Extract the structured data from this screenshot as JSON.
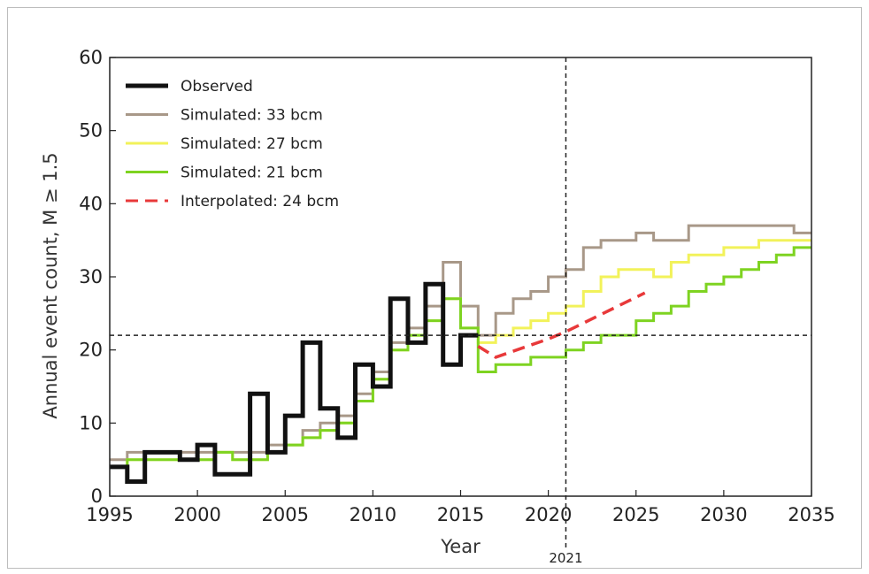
{
  "chart_data": {
    "type": "line",
    "title": "",
    "xlabel": "Year",
    "ylabel": "Annual event count, M ≥ 1.5",
    "xlim": [
      1995,
      2035
    ],
    "ylim": [
      0,
      60
    ],
    "xticks": [
      1995,
      2000,
      2005,
      2010,
      2015,
      2020,
      2025,
      2030,
      2035
    ],
    "yticks": [
      0,
      10,
      20,
      30,
      40,
      50,
      60
    ],
    "grid": false,
    "legend_position": "top-left",
    "reference_lines": {
      "horizontal_y": 22,
      "vertical_x": 2021,
      "vertical_label": "2021"
    },
    "series": [
      {
        "name": "Simulated: 33 bcm",
        "color": "#a89888",
        "style": "step",
        "x": [
          1995,
          1996,
          1997,
          1998,
          1999,
          2000,
          2001,
          2002,
          2003,
          2004,
          2005,
          2006,
          2007,
          2008,
          2009,
          2010,
          2011,
          2012,
          2013,
          2014,
          2015,
          2016,
          2017,
          2018,
          2019,
          2020,
          2021,
          2022,
          2023,
          2024,
          2025,
          2026,
          2027,
          2028,
          2029,
          2030,
          2031,
          2032,
          2033,
          2034,
          2035
        ],
        "y": [
          5,
          6,
          6,
          6,
          6,
          6,
          6,
          6,
          6,
          7,
          7,
          9,
          10,
          11,
          14,
          17,
          21,
          23,
          26,
          32,
          26,
          22,
          25,
          27,
          28,
          30,
          31,
          34,
          35,
          35,
          36,
          35,
          35,
          37,
          37,
          37,
          37,
          37,
          37,
          36,
          37
        ]
      },
      {
        "name": "Simulated: 27 bcm",
        "color": "#f2f25a",
        "style": "step",
        "x": [
          1995,
          1996,
          1997,
          1998,
          1999,
          2000,
          2001,
          2002,
          2003,
          2004,
          2005,
          2006,
          2007,
          2008,
          2009,
          2010,
          2011,
          2012,
          2013,
          2014,
          2015,
          2016,
          2017,
          2018,
          2019,
          2020,
          2021,
          2022,
          2023,
          2024,
          2025,
          2026,
          2027,
          2028,
          2029,
          2030,
          2031,
          2032,
          2033,
          2034,
          2035
        ],
        "y": [
          4,
          5,
          5,
          5,
          5,
          5,
          6,
          5,
          5,
          6,
          7,
          8,
          9,
          10,
          13,
          16,
          20,
          22,
          24,
          27,
          23,
          21,
          22,
          23,
          24,
          25,
          26,
          28,
          30,
          31,
          31,
          30,
          32,
          33,
          33,
          34,
          34,
          35,
          35,
          35,
          35
        ]
      },
      {
        "name": "Simulated: 21 bcm",
        "color": "#7ed321",
        "style": "step",
        "x": [
          1995,
          1996,
          1997,
          1998,
          1999,
          2000,
          2001,
          2002,
          2003,
          2004,
          2005,
          2006,
          2007,
          2008,
          2009,
          2010,
          2011,
          2012,
          2013,
          2014,
          2015,
          2016,
          2017,
          2018,
          2019,
          2020,
          2021,
          2022,
          2023,
          2024,
          2025,
          2026,
          2027,
          2028,
          2029,
          2030,
          2031,
          2032,
          2033,
          2034,
          2035
        ],
        "y": [
          4,
          5,
          5,
          5,
          5,
          5,
          6,
          5,
          5,
          6,
          7,
          8,
          9,
          10,
          13,
          16,
          20,
          22,
          24,
          27,
          23,
          17,
          18,
          18,
          19,
          19,
          20,
          21,
          22,
          22,
          24,
          25,
          26,
          28,
          29,
          30,
          31,
          32,
          33,
          34,
          35
        ]
      },
      {
        "name": "Observed",
        "color": "#111111",
        "style": "step",
        "x": [
          1995,
          1996,
          1997,
          1998,
          1999,
          2000,
          2001,
          2002,
          2003,
          2004,
          2005,
          2006,
          2007,
          2008,
          2009,
          2010,
          2011,
          2012,
          2013,
          2014,
          2015,
          2016
        ],
        "y": [
          4,
          2,
          6,
          6,
          5,
          7,
          3,
          3,
          14,
          6,
          11,
          21,
          12,
          8,
          18,
          15,
          27,
          21,
          29,
          18,
          22,
          22
        ]
      },
      {
        "name": "Interpolated: 24 bcm",
        "color": "#e8393a",
        "style": "dashed",
        "x": [
          2016,
          2017,
          2020,
          2021,
          2025.5
        ],
        "y": [
          20.5,
          19,
          21.5,
          22.5,
          27.8
        ]
      }
    ]
  }
}
